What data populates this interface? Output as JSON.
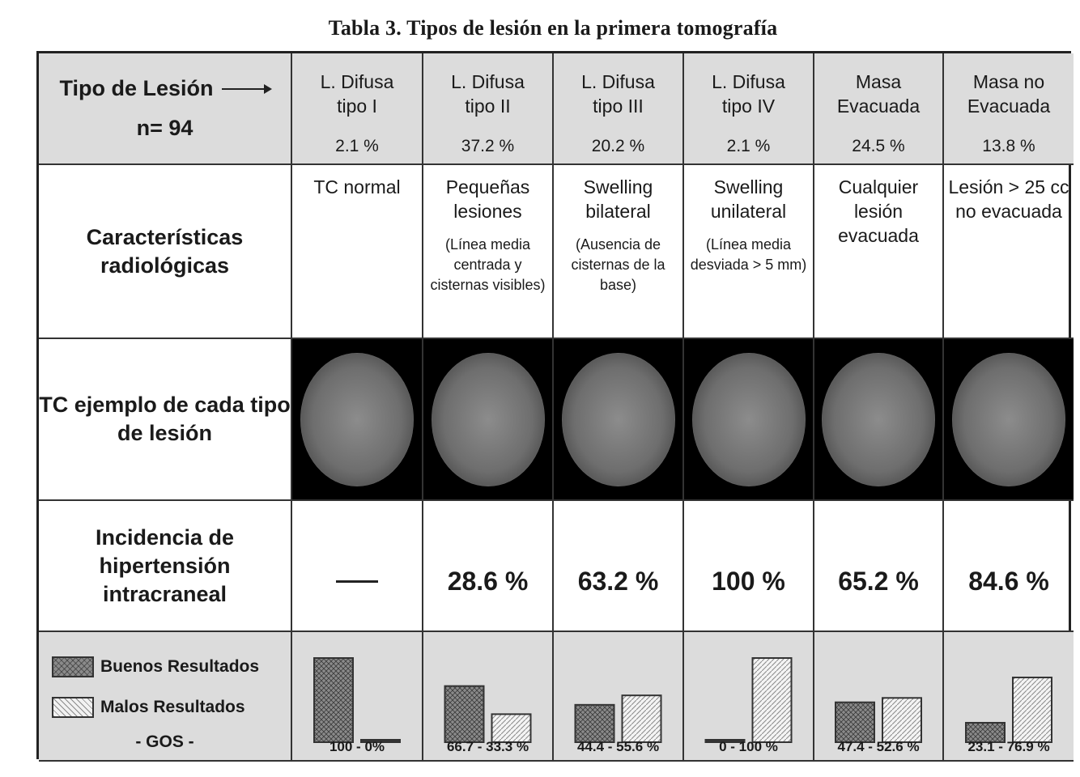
{
  "title": "Tabla 3. Tipos de lesión en la primera tomografía",
  "header": {
    "label": "Tipo de Lesión",
    "n": "n= 94",
    "columns": [
      {
        "l1": "L. Difusa",
        "l2": "tipo I",
        "pct": "2.1 %"
      },
      {
        "l1": "L. Difusa",
        "l2": "tipo II",
        "pct": "37.2 %"
      },
      {
        "l1": "L. Difusa",
        "l2": "tipo III",
        "pct": "20.2 %"
      },
      {
        "l1": "L. Difusa",
        "l2": "tipo IV",
        "pct": "2.1 %"
      },
      {
        "l1": "Masa",
        "l2": "Evacuada",
        "pct": "24.5 %"
      },
      {
        "l1": "Masa no",
        "l2": "Evacuada",
        "pct": "13.8 %"
      }
    ]
  },
  "characteristics": {
    "label": "Características radiológicas",
    "columns": [
      {
        "main": "TC normal",
        "sub": ""
      },
      {
        "main": "Pequeñas lesiones",
        "sub": "(Línea media centrada y cisternas visibles)"
      },
      {
        "main": "Swelling bilateral",
        "sub": "(Ausencia de cisternas de la base)"
      },
      {
        "main": "Swelling unilateral",
        "sub": "(Línea media desviada > 5 mm)"
      },
      {
        "main": "Cualquier lesión evacuada",
        "sub": ""
      },
      {
        "main": "Lesión > 25 cc no evacuada",
        "sub": ""
      }
    ]
  },
  "examples": {
    "label": "TC ejemplo de cada tipo de lesión"
  },
  "incidence": {
    "label": "Incidencia de hipertensión intracraneal",
    "values": [
      "—",
      "28.6 %",
      "63.2 %",
      "100 %",
      "65.2 %",
      "84.6 %"
    ]
  },
  "outcomes": {
    "legend_good": "Buenos Resultados",
    "legend_bad": "Malos Resultados",
    "legend_title": "- GOS -",
    "labels": [
      "100  -  0%",
      "66.7 -  33.3 %",
      "44.4 -  55.6 %",
      "0 - 100 %",
      "47.4 -  52.6 %",
      "23.1 -  76.9 %"
    ]
  },
  "chart_data": {
    "type": "bar",
    "categories": [
      "L. Difusa tipo I",
      "L. Difusa tipo II",
      "L. Difusa tipo III",
      "L. Difusa tipo IV",
      "Masa Evacuada",
      "Masa no Evacuada"
    ],
    "series": [
      {
        "name": "Buenos Resultados",
        "values": [
          100,
          66.7,
          44.4,
          0,
          47.4,
          23.1
        ]
      },
      {
        "name": "Malos Resultados",
        "values": [
          0,
          33.3,
          55.6,
          100,
          52.6,
          76.9
        ]
      }
    ],
    "ylim": [
      0,
      100
    ],
    "colors": {
      "good": "#8a8a8a",
      "bad": "#f2f2f2"
    }
  }
}
